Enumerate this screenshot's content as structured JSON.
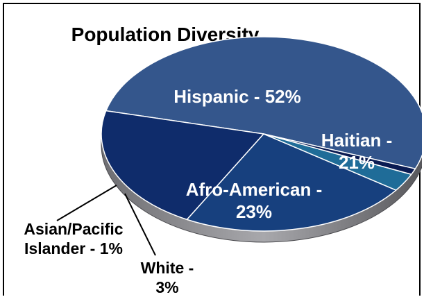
{
  "chart_data": {
    "type": "pie",
    "title": "Population Diversity",
    "slices": [
      {
        "label": "Hispanic",
        "value": 52,
        "text": "Hispanic - 52%",
        "color": "#34568c"
      },
      {
        "label": "Haitian",
        "value": 21,
        "text": "Haitian - 21%",
        "color": "#0f2c6b"
      },
      {
        "label": "Afro-American",
        "value": 23,
        "text": "Afro-American - 23%",
        "color": "#17407e"
      },
      {
        "label": "White",
        "value": 3,
        "text": "White - 3%",
        "color": "#1f6c98"
      },
      {
        "label": "Asian/Pacific Islander",
        "value": 1,
        "text": "Asian/Pacific Islander - 1%",
        "color": "#0a1b52"
      }
    ],
    "label_lines": {
      "hispanic": [
        "Hispanic - 52%"
      ],
      "haitian": [
        "Haitian -",
        "21%"
      ],
      "afro": [
        "Afro-American -",
        "23%"
      ],
      "white": [
        "White -",
        "3%"
      ],
      "asian": [
        "Asian/Pacific",
        "Islander - 1%"
      ]
    },
    "legend": "none"
  }
}
